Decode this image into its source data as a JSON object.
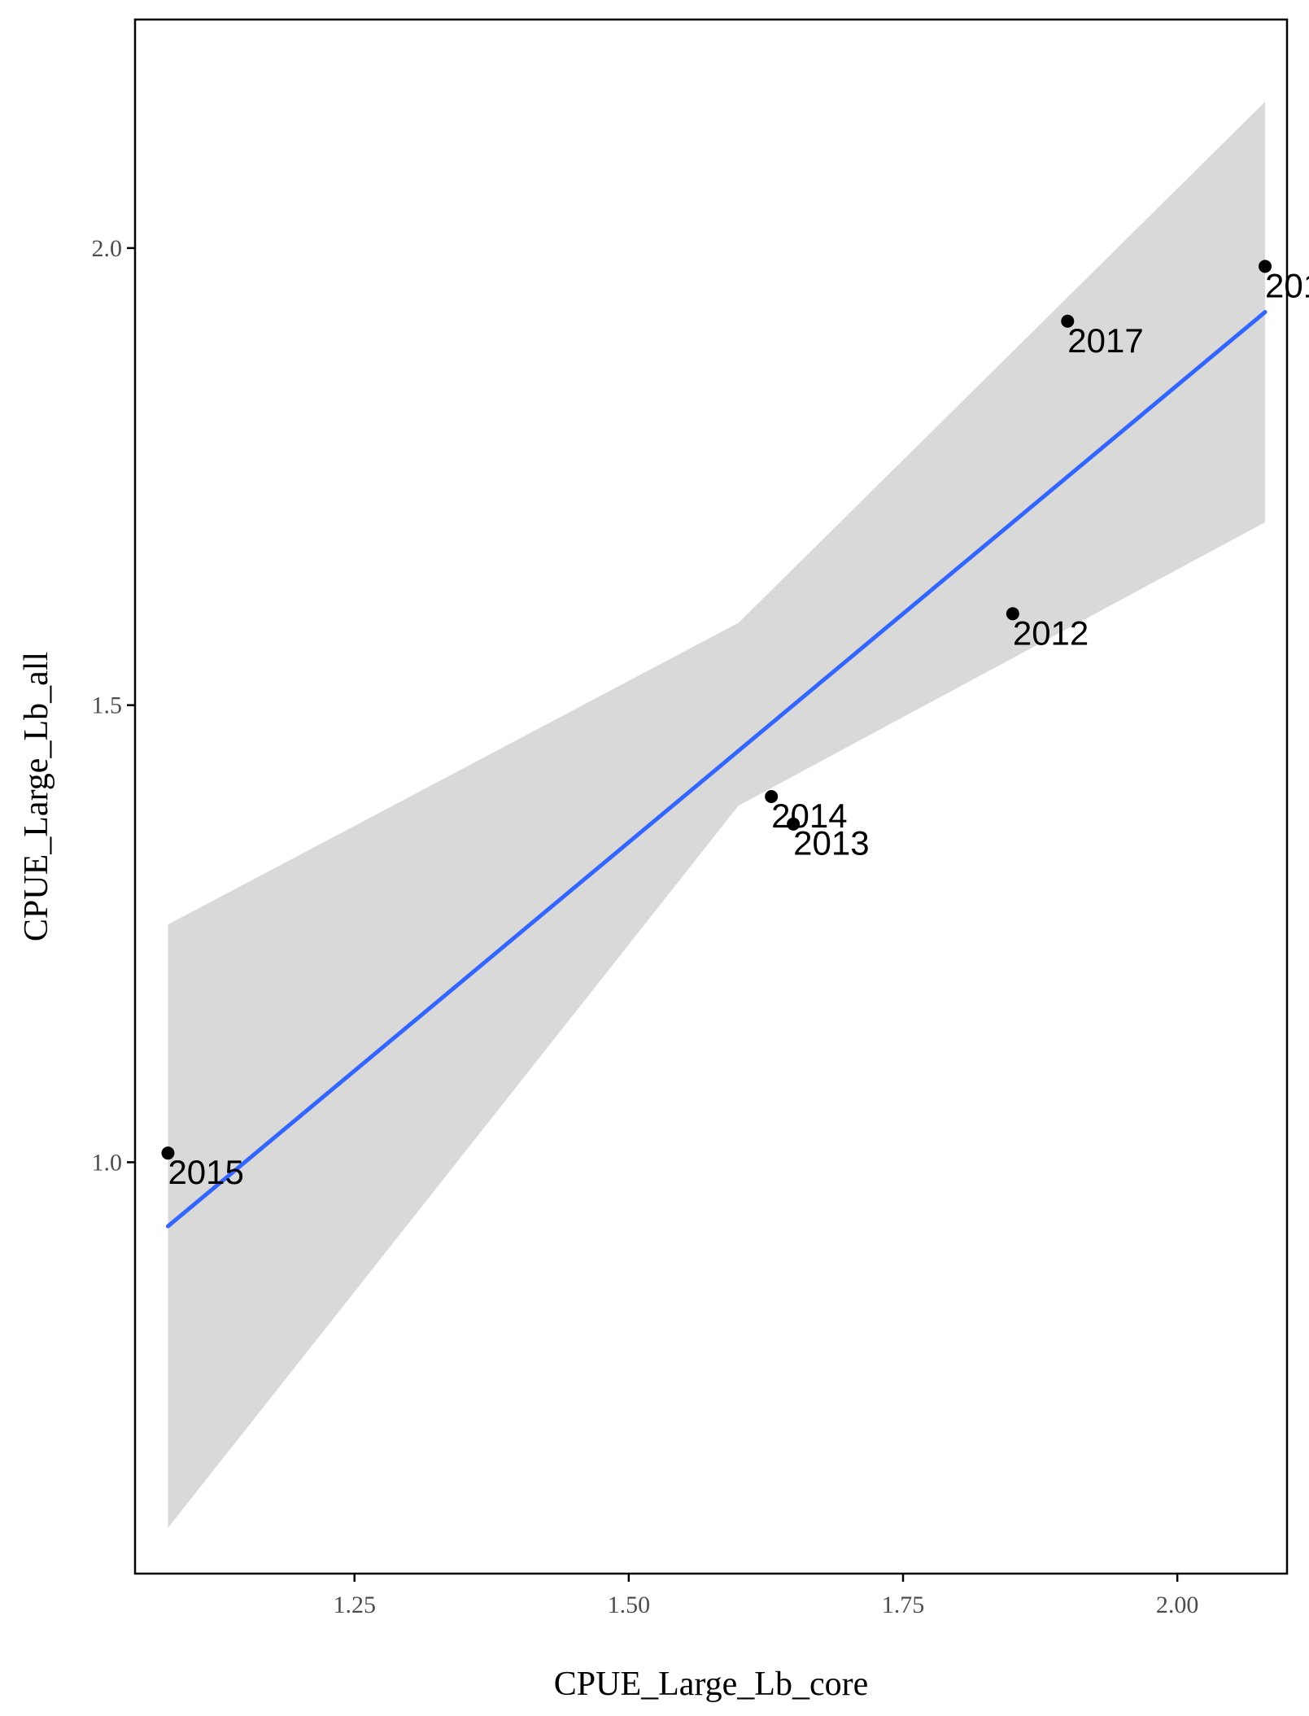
{
  "chart_data": {
    "type": "scatter",
    "title": "",
    "xlabel": "CPUE_Large_Lb_core",
    "ylabel": "CPUE_Large_Lb_all",
    "xlim": [
      1.05,
      2.1
    ],
    "ylim": [
      0.55,
      2.25
    ],
    "x_ticks": [
      1.25,
      1.5,
      1.75,
      2.0
    ],
    "x_tick_labels": [
      "1.25",
      "1.50",
      "1.75",
      "2.00"
    ],
    "y_ticks": [
      1.0,
      1.5,
      2.0
    ],
    "y_tick_labels": [
      "1.0",
      "1.5",
      "2.0"
    ],
    "grid": false,
    "points": [
      {
        "x": 1.85,
        "y": 1.6,
        "label": "2012"
      },
      {
        "x": 1.65,
        "y": 1.37,
        "label": "2013"
      },
      {
        "x": 1.63,
        "y": 1.4,
        "label": "2014"
      },
      {
        "x": 1.08,
        "y": 1.01,
        "label": "2015"
      },
      {
        "x": 2.08,
        "y": 1.98,
        "label": "201"
      },
      {
        "x": 1.9,
        "y": 1.92,
        "label": "2017"
      }
    ],
    "fit_line": {
      "x": [
        1.08,
        2.08
      ],
      "y": [
        0.93,
        1.93
      ]
    },
    "confidence_band": {
      "x": [
        1.08,
        1.6,
        2.08
      ],
      "upper": [
        1.26,
        1.59,
        2.16
      ],
      "lower": [
        0.6,
        1.39,
        1.7
      ]
    },
    "colors": {
      "point": "#000000",
      "fit_line": "#3366ff",
      "band": "#d9d9d9",
      "axis": "#000000"
    }
  }
}
